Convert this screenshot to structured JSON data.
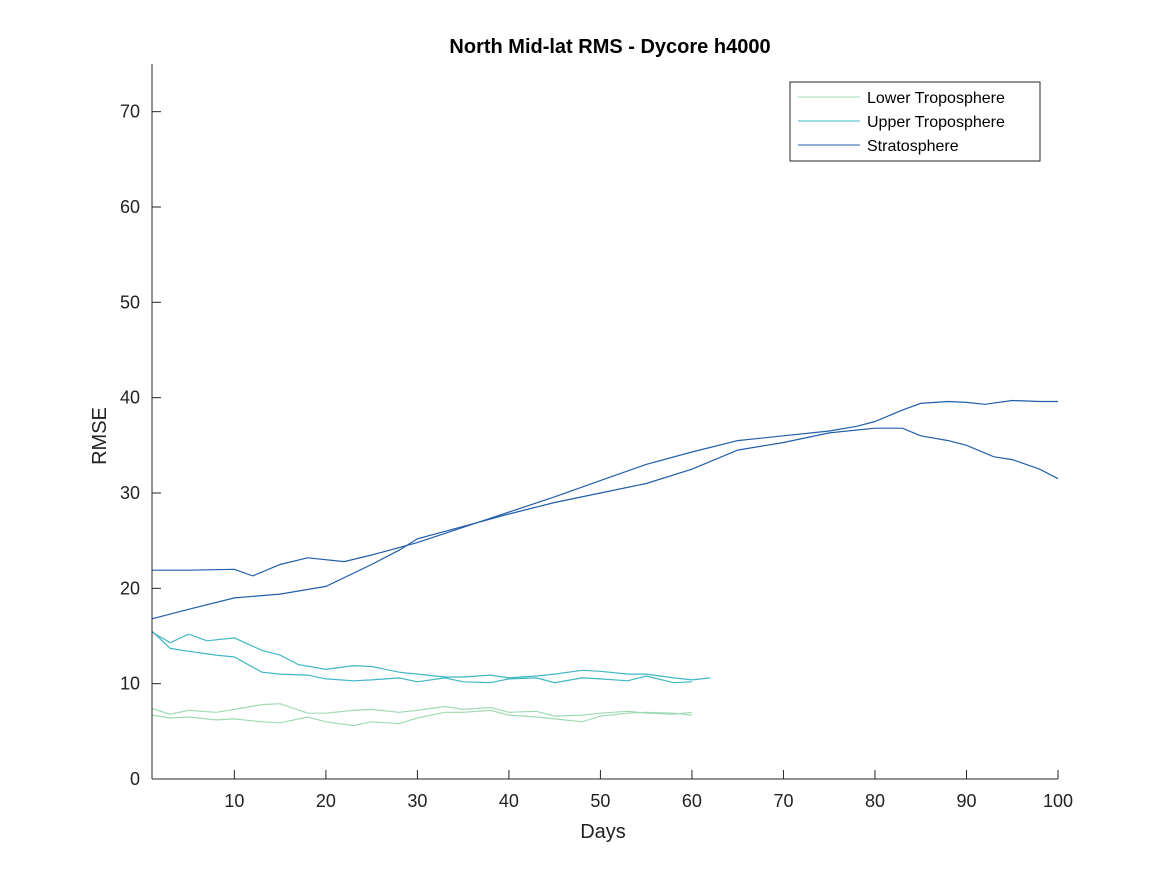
{
  "chart_data": {
    "type": "line",
    "title": "North Mid-lat RMS - Dycore h4000",
    "xlabel": "Days",
    "ylabel": "RMSE",
    "xlim": [
      1,
      100
    ],
    "ylim": [
      0,
      75
    ],
    "xticks": [
      10,
      20,
      30,
      40,
      50,
      60,
      70,
      80,
      90,
      100
    ],
    "yticks": [
      0,
      10,
      20,
      30,
      40,
      50,
      60,
      70
    ],
    "grid": false,
    "legend_position": "top-right",
    "legend": [
      {
        "label": "Lower Troposphere",
        "color": "#a1dab4"
      },
      {
        "label": "Upper Troposphere",
        "color": "#41b6c4"
      },
      {
        "label": "Stratosphere",
        "color": "#225ea8"
      }
    ],
    "series": [
      {
        "group": "Stratosphere",
        "color": "#225ea8",
        "x": [
          1,
          5,
          10,
          12,
          15,
          18,
          22,
          25,
          30,
          35,
          40,
          45,
          50,
          55,
          60,
          65,
          70,
          75,
          78,
          80,
          83,
          85,
          88,
          90,
          92,
          95,
          98,
          100
        ],
        "y": [
          21.9,
          21.9,
          22.0,
          21.3,
          22.5,
          23.2,
          22.8,
          23.5,
          24.8,
          26.4,
          28.0,
          29.6,
          31.3,
          33.0,
          34.3,
          35.5,
          36.0,
          36.5,
          37.0,
          37.5,
          38.7,
          39.4,
          39.6,
          39.5,
          39.3,
          39.7,
          39.6,
          39.6
        ]
      },
      {
        "group": "Stratosphere",
        "color": "#225ea8",
        "x": [
          1,
          5,
          10,
          15,
          20,
          25,
          28,
          30,
          35,
          40,
          45,
          50,
          55,
          60,
          65,
          70,
          75,
          80,
          83,
          85,
          88,
          90,
          93,
          95,
          98,
          100
        ],
        "y": [
          16.8,
          17.8,
          19.0,
          19.4,
          20.2,
          22.5,
          24.0,
          25.2,
          26.5,
          27.8,
          29.0,
          30.0,
          31.0,
          32.5,
          34.5,
          35.3,
          36.3,
          36.8,
          36.8,
          36.0,
          35.5,
          35.0,
          33.8,
          33.5,
          32.5,
          31.5
        ]
      },
      {
        "group": "Upper Troposphere",
        "color": "#41b6c4",
        "x": [
          1,
          3,
          5,
          7,
          10,
          13,
          15,
          17,
          20,
          23,
          25,
          28,
          30,
          33,
          35,
          38,
          40,
          43,
          45,
          48,
          50,
          53,
          55,
          58,
          60,
          62
        ],
        "y": [
          15.4,
          14.3,
          15.2,
          14.5,
          14.8,
          13.5,
          13.0,
          12.0,
          11.5,
          11.9,
          11.8,
          11.2,
          11.0,
          10.7,
          10.7,
          10.9,
          10.6,
          10.8,
          11.0,
          11.4,
          11.3,
          11.0,
          11.0,
          10.6,
          10.4,
          10.6
        ]
      },
      {
        "group": "Upper Troposphere",
        "color": "#41b6c4",
        "x": [
          1,
          3,
          5,
          8,
          10,
          13,
          15,
          18,
          20,
          23,
          25,
          28,
          30,
          33,
          35,
          38,
          40,
          43,
          45,
          48,
          50,
          53,
          55,
          58,
          60
        ],
        "y": [
          15.5,
          13.7,
          13.4,
          13.0,
          12.8,
          11.2,
          11.0,
          10.9,
          10.5,
          10.3,
          10.4,
          10.6,
          10.2,
          10.6,
          10.2,
          10.1,
          10.5,
          10.6,
          10.1,
          10.6,
          10.5,
          10.3,
          10.8,
          10.1,
          10.2
        ]
      },
      {
        "group": "Lower Troposphere",
        "color": "#a1dab4",
        "x": [
          1,
          3,
          5,
          8,
          10,
          13,
          15,
          18,
          20,
          23,
          25,
          28,
          30,
          33,
          35,
          38,
          40,
          43,
          45,
          48,
          50,
          53,
          55,
          58,
          60
        ],
        "y": [
          7.4,
          6.8,
          7.2,
          7.0,
          7.3,
          7.8,
          7.9,
          6.9,
          6.9,
          7.2,
          7.3,
          7.0,
          7.2,
          7.6,
          7.3,
          7.5,
          7.0,
          7.1,
          6.6,
          6.7,
          6.9,
          7.1,
          6.9,
          6.8,
          7.0
        ]
      },
      {
        "group": "Lower Troposphere",
        "color": "#a1dab4",
        "x": [
          1,
          3,
          5,
          8,
          10,
          13,
          15,
          18,
          20,
          23,
          25,
          28,
          30,
          33,
          35,
          38,
          40,
          43,
          45,
          48,
          50,
          53,
          55,
          58,
          60
        ],
        "y": [
          6.7,
          6.4,
          6.5,
          6.2,
          6.3,
          6.0,
          5.9,
          6.5,
          6.0,
          5.6,
          6.0,
          5.8,
          6.4,
          7.0,
          7.0,
          7.2,
          6.7,
          6.5,
          6.3,
          6.0,
          6.6,
          6.9,
          7.0,
          6.9,
          6.7
        ]
      }
    ]
  }
}
